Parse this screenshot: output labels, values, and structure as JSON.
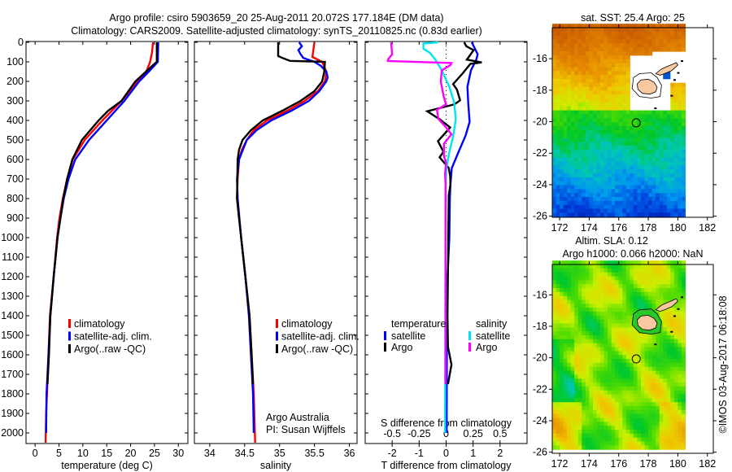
{
  "header": {
    "title_line1": "Argo profile: csiro 5903659_20 25-Aug-2011 20.072S 177.184E (DM data)",
    "title_line2": "Climatology: CARS2009. Satellite-adjusted climatology: synTS_20110825.nc (0.83d earlier)"
  },
  "credits": {
    "institution": "Argo Australia",
    "pi": "PI: Susan Wijffels",
    "copyright": "©IMOS 03-Aug-2017 06:18:08"
  },
  "colors": {
    "climatology": "#ff0000",
    "satellite": "#0000ff",
    "argo": "#000000",
    "salinity_satellite": "#00e5ee",
    "salinity_argo": "#ff00ff",
    "land": "#f8c8a0"
  },
  "chart_data": [
    {
      "type": "line",
      "title": "",
      "xlabel": "temperature (deg C)",
      "ylabel": "depth",
      "xlim": [
        -1.9,
        32
      ],
      "ylim": [
        -4,
        2054
      ],
      "y_reversed": true,
      "xticks": [
        0,
        5,
        10,
        15,
        20,
        25,
        30
      ],
      "xtick_labels": [
        "0",
        "5",
        "10",
        "15",
        "20",
        "25",
        "30"
      ],
      "yticks": [
        0,
        100,
        200,
        300,
        400,
        500,
        600,
        700,
        800,
        900,
        1000,
        1100,
        1200,
        1300,
        1400,
        1500,
        1600,
        1700,
        1800,
        1900,
        2000
      ],
      "ytick_labels": [
        "0",
        "100",
        "200",
        "300",
        "400",
        "500",
        "600",
        "700",
        "800",
        "900",
        "1000",
        "1100",
        "1200",
        "1300",
        "1400",
        "1500",
        "1600",
        "1700",
        "1800",
        "1900",
        "2000"
      ],
      "legend": [
        "climatology",
        "satellite-adj. clim.",
        "Argo(..raw -QC)"
      ],
      "series": [
        {
          "name": "climatology",
          "color": "#ff0000",
          "points": [
            [
              0,
              24.7
            ],
            [
              50,
              24.5
            ],
            [
              100,
              24.1
            ],
            [
              150,
              23.3
            ],
            [
              200,
              21.5
            ],
            [
              300,
              18.1
            ],
            [
              400,
              14.1
            ],
            [
              500,
              10.4
            ],
            [
              600,
              7.9
            ],
            [
              700,
              6.7
            ],
            [
              800,
              5.8
            ],
            [
              900,
              5.1
            ],
            [
              1000,
              4.6
            ],
            [
              1200,
              3.9
            ],
            [
              1400,
              3.1
            ],
            [
              1600,
              2.8
            ],
            [
              1800,
              2.5
            ],
            [
              1900,
              2.3
            ],
            [
              2050,
              2.2
            ]
          ]
        },
        {
          "name": "satellite-adj. clim.",
          "color": "#0000ff",
          "points": [
            [
              0,
              25.8
            ],
            [
              100,
              25.7
            ],
            [
              150,
              23.8
            ],
            [
              200,
              21.8
            ],
            [
              300,
              18.7
            ],
            [
              400,
              15.0
            ],
            [
              500,
              11.3
            ],
            [
              600,
              8.4
            ],
            [
              700,
              7.0
            ],
            [
              800,
              6.0
            ],
            [
              900,
              5.3
            ],
            [
              1000,
              4.7
            ],
            [
              1200,
              3.9
            ],
            [
              1400,
              3.2
            ],
            [
              1600,
              2.8
            ],
            [
              1800,
              2.4
            ],
            [
              2000,
              2.3
            ]
          ]
        },
        {
          "name": "Argo(..raw -QC)",
          "color": "#000000",
          "points": [
            [
              0,
              25.5
            ],
            [
              100,
              25.5
            ],
            [
              110,
              25.0
            ],
            [
              200,
              21.0
            ],
            [
              300,
              18.1
            ],
            [
              350,
              15.3
            ],
            [
              400,
              13.3
            ],
            [
              500,
              9.8
            ],
            [
              600,
              7.8
            ],
            [
              700,
              6.7
            ],
            [
              800,
              5.9
            ],
            [
              1000,
              4.7
            ],
            [
              1200,
              3.9
            ],
            [
              1400,
              3.2
            ],
            [
              1600,
              2.9
            ],
            [
              1750,
              2.6
            ]
          ]
        }
      ]
    },
    {
      "type": "line",
      "title": "",
      "xlabel": "salinity",
      "ylabel": "depth",
      "xlim": [
        33.78,
        36.11
      ],
      "ylim": [
        -4,
        2054
      ],
      "y_reversed": true,
      "xticks": [
        34,
        34.5,
        35,
        35.5,
        36
      ],
      "xtick_labels": [
        "34",
        "34.5",
        "35",
        "35.5",
        "36"
      ],
      "legend": [
        "climatology",
        "satellite-adj. clim.",
        "Argo(..raw -QC)"
      ],
      "series": [
        {
          "name": "climatology",
          "color": "#ff0000",
          "points": [
            [
              0,
              35.5
            ],
            [
              75,
              35.47
            ],
            [
              100,
              35.61
            ],
            [
              150,
              35.67
            ],
            [
              200,
              35.65
            ],
            [
              250,
              35.55
            ],
            [
              300,
              35.36
            ],
            [
              350,
              35.11
            ],
            [
              400,
              34.82
            ],
            [
              450,
              34.63
            ],
            [
              500,
              34.53
            ],
            [
              550,
              34.46
            ],
            [
              600,
              34.42
            ],
            [
              700,
              34.4
            ],
            [
              800,
              34.39
            ],
            [
              900,
              34.42
            ],
            [
              1000,
              34.45
            ],
            [
              1200,
              34.51
            ],
            [
              1400,
              34.57
            ],
            [
              1600,
              34.6
            ],
            [
              1800,
              34.63
            ],
            [
              2050,
              34.65
            ]
          ]
        },
        {
          "name": "satellite-adj. clim.",
          "color": "#0000ff",
          "points": [
            [
              0,
              35.28
            ],
            [
              20,
              35.32
            ],
            [
              40,
              35.27
            ],
            [
              60,
              35.3
            ],
            [
              80,
              35.34
            ],
            [
              100,
              35.5
            ],
            [
              120,
              35.59
            ],
            [
              150,
              35.67
            ],
            [
              180,
              35.69
            ],
            [
              200,
              35.67
            ],
            [
              250,
              35.57
            ],
            [
              300,
              35.42
            ],
            [
              350,
              35.17
            ],
            [
              400,
              34.88
            ],
            [
              450,
              34.67
            ],
            [
              500,
              34.53
            ],
            [
              600,
              34.42
            ],
            [
              700,
              34.39
            ],
            [
              800,
              34.4
            ],
            [
              1000,
              34.45
            ],
            [
              1200,
              34.51
            ],
            [
              1400,
              34.56
            ],
            [
              1600,
              34.59
            ],
            [
              1800,
              34.62
            ],
            [
              2000,
              34.63
            ]
          ]
        },
        {
          "name": "Argo(..raw -QC)",
          "color": "#000000",
          "points": [
            [
              0,
              34.98
            ],
            [
              70,
              34.98
            ],
            [
              80,
              35.04
            ],
            [
              95,
              35.15
            ],
            [
              100,
              35.65
            ],
            [
              150,
              35.64
            ],
            [
              200,
              35.61
            ],
            [
              250,
              35.5
            ],
            [
              300,
              35.3
            ],
            [
              350,
              35.04
            ],
            [
              400,
              34.76
            ],
            [
              450,
              34.59
            ],
            [
              500,
              34.47
            ],
            [
              550,
              34.42
            ],
            [
              600,
              34.4
            ],
            [
              800,
              34.39
            ],
            [
              1000,
              34.45
            ],
            [
              1200,
              34.51
            ],
            [
              1400,
              34.57
            ],
            [
              1600,
              34.6
            ],
            [
              1750,
              34.62
            ]
          ]
        }
      ]
    },
    {
      "type": "line",
      "title": "",
      "xlabel": "T difference from climatology",
      "xlabel2": "S difference from climatology",
      "xlim": [
        -3,
        3
      ],
      "xlim2": [
        -0.75,
        0.75
      ],
      "ylim": [
        -4,
        2054
      ],
      "y_reversed": true,
      "xticks": [
        -2,
        -1,
        0,
        1,
        2
      ],
      "xtick_labels": [
        "-2",
        "-1",
        "0",
        "1",
        "2"
      ],
      "xticks2": [
        -0.5,
        -0.25,
        0,
        0.25,
        0.5
      ],
      "xtick_labels2": [
        "-0.5",
        "-0.25",
        "0",
        "0.25",
        "0.5"
      ],
      "legend_groups": [
        {
          "heading": "temperature",
          "entries": [
            "satellite",
            "Argo"
          ]
        },
        {
          "heading": "salinity",
          "entries": [
            "satellite",
            "Argo"
          ]
        }
      ],
      "series": [
        {
          "name": "temperature satellite",
          "axis": "T",
          "color": "#0000ff",
          "points": [
            [
              0,
              0.95
            ],
            [
              33,
              1.07
            ],
            [
              61,
              1.17
            ],
            [
              89,
              1.12
            ],
            [
              144,
              0.92
            ],
            [
              228,
              0.79
            ],
            [
              311,
              0.82
            ],
            [
              408,
              0.87
            ],
            [
              478,
              0.72
            ],
            [
              561,
              0.46
            ],
            [
              644,
              0.21
            ],
            [
              728,
              0.16
            ],
            [
              800,
              0.14
            ],
            [
              1000,
              0.12
            ],
            [
              1200,
              0.05
            ],
            [
              1400,
              0.03
            ],
            [
              2000,
              0.02
            ]
          ]
        },
        {
          "name": "temperature Argo",
          "axis": "T",
          "color": "#000000",
          "points": [
            [
              0,
              0.67
            ],
            [
              20,
              0.75
            ],
            [
              40,
              1.02
            ],
            [
              89,
              0.77
            ],
            [
              103,
              1.32
            ],
            [
              110,
              0.9
            ],
            [
              158,
              0.62
            ],
            [
              214,
              0.26
            ],
            [
              242,
              0.4
            ],
            [
              297,
              0.52
            ],
            [
              318,
              0.3
            ],
            [
              353,
              -0.7
            ],
            [
              394,
              -0.24
            ],
            [
              436,
              0.15
            ],
            [
              506,
              -0.3
            ],
            [
              561,
              -0.1
            ],
            [
              589,
              -0.24
            ],
            [
              644,
              0.1
            ],
            [
              686,
              0.15
            ],
            [
              728,
              0.16
            ],
            [
              783,
              0.1
            ],
            [
              1000,
              0.08
            ],
            [
              1400,
              0.05
            ],
            [
              1560,
              0.07
            ],
            [
              1650,
              0.2
            ],
            [
              1750,
              0.07
            ]
          ]
        },
        {
          "name": "salinity satellite",
          "axis": "S",
          "color": "#00e5ee",
          "points": [
            [
              0,
              -0.075
            ],
            [
              6,
              -0.21
            ],
            [
              33,
              -0.21
            ],
            [
              54,
              -0.15
            ],
            [
              89,
              -0.1
            ],
            [
              144,
              -0.04
            ],
            [
              228,
              0.03
            ],
            [
              311,
              0.075
            ],
            [
              394,
              0.09
            ],
            [
              478,
              0.066
            ],
            [
              561,
              0.03
            ],
            [
              644,
              0.003
            ],
            [
              756,
              -0.005
            ],
            [
              2000,
              -0.01
            ]
          ]
        },
        {
          "name": "salinity Argo",
          "axis": "S",
          "color": "#ff00ff",
          "points": [
            [
              0,
              -0.51
            ],
            [
              61,
              -0.5
            ],
            [
              89,
              -0.54
            ],
            [
              96,
              -0.54
            ],
            [
              106,
              0.05
            ],
            [
              117,
              0.04
            ],
            [
              144,
              -0.04
            ],
            [
              200,
              -0.05
            ],
            [
              283,
              -0.02
            ],
            [
              318,
              0.0
            ],
            [
              346,
              -0.085
            ],
            [
              394,
              -0.07
            ],
            [
              436,
              0.0
            ],
            [
              471,
              0.05
            ],
            [
              519,
              -0.02
            ],
            [
              582,
              -0.02
            ],
            [
              617,
              0.0
            ],
            [
              672,
              -0.01
            ],
            [
              728,
              -0.005
            ],
            [
              1750,
              -0.005
            ]
          ]
        }
      ]
    },
    {
      "type": "heatmap",
      "title": "sat. SST: 25.4 Argo: 25",
      "xlim": [
        171.5,
        182.4
      ],
      "ylim": [
        -26.07,
        -14.03
      ],
      "xticks": [
        172,
        174,
        176,
        178,
        180,
        182
      ],
      "xtick_labels": [
        "172",
        "174",
        "176",
        "178",
        "180",
        "182"
      ],
      "yticks": [
        -16,
        -18,
        -20,
        -22,
        -24,
        -26
      ],
      "ytick_labels": [
        "-16",
        "-18",
        "-20",
        "-22",
        "-24",
        "-26"
      ],
      "argo_position": {
        "lon": 177.184,
        "lat": -20.072
      }
    },
    {
      "type": "heatmap",
      "title": "Altim. SLA: 0.12",
      "subtitle": "Argo h1000: 0.066 h2000: NaN",
      "xlim": [
        171.5,
        182.4
      ],
      "ylim": [
        -26.07,
        -14.07
      ],
      "xticks": [
        172,
        174,
        176,
        178,
        180,
        182
      ],
      "xtick_labels": [
        "172",
        "174",
        "176",
        "178",
        "180",
        "182"
      ],
      "yticks": [
        -16,
        -18,
        -20,
        -22,
        -24,
        -26
      ],
      "ytick_labels": [
        "-16",
        "-18",
        "-20",
        "-22",
        "-24",
        "-26"
      ],
      "argo_position": {
        "lon": 177.184,
        "lat": -20.072
      }
    }
  ]
}
